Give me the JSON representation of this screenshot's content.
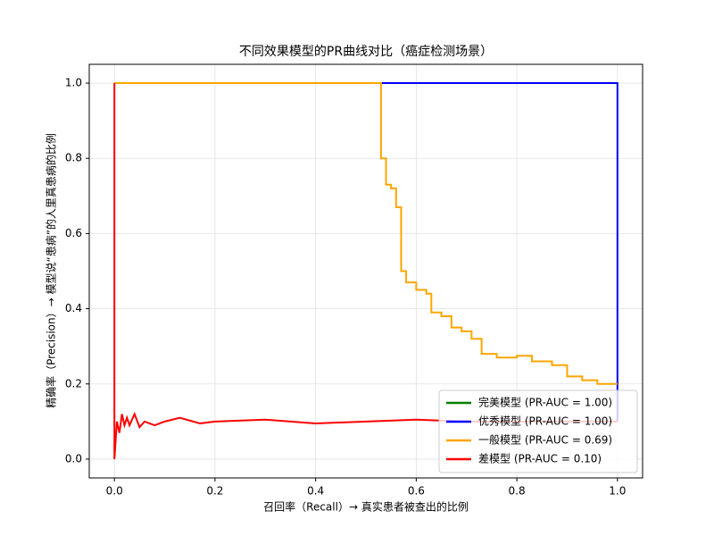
{
  "chart_data": {
    "type": "line",
    "title": "不同效果模型的PR曲线对比（癌症检测场景）",
    "x_label": "召回率（Recall）→ 真实患者被查出的比例",
    "y_label": "精确率（Precision）→ 模型说“患病”的人里真患病的比例",
    "xlim": [
      -0.05,
      1.05
    ],
    "ylim": [
      -0.05,
      1.05
    ],
    "xticks": [
      {
        "value": 0,
        "label": "0.0"
      },
      0.2,
      0.4,
      0.6,
      0.8,
      {
        "value": 1,
        "label": "1.0"
      }
    ],
    "yticks": [
      {
        "value": 0,
        "label": "0.0"
      },
      0.2,
      0.4,
      0.6,
      0.8,
      {
        "value": 1,
        "label": "1.0"
      }
    ],
    "grid": true,
    "legend": "lower right",
    "series": [
      {
        "name": "完美模型 (PR-AUC = 1.00)",
        "color": "#008000",
        "x": [
          0,
          1
        ],
        "values": [
          1,
          1
        ]
      },
      {
        "name": "优秀模型 (PR-AUC = 1.00)",
        "color": "#0000ff",
        "x": [
          0,
          1,
          1
        ],
        "values": [
          1,
          1,
          0.1
        ]
      },
      {
        "name": "一般模型 (PR-AUC = 0.69)",
        "color": "#ffa500",
        "x": [
          0,
          0.53,
          0.53,
          0.54,
          0.54,
          0.55,
          0.55,
          0.56,
          0.56,
          0.57,
          0.57,
          0.58,
          0.58,
          0.6,
          0.6,
          0.62,
          0.62,
          0.63,
          0.63,
          0.65,
          0.65,
          0.67,
          0.67,
          0.69,
          0.69,
          0.71,
          0.71,
          0.73,
          0.73,
          0.76,
          0.76,
          0.8,
          0.8,
          0.83,
          0.83,
          0.87,
          0.87,
          0.9,
          0.9,
          0.93,
          0.93,
          0.96,
          0.96,
          1.0
        ],
        "values": [
          1,
          1,
          0.8,
          0.8,
          0.73,
          0.73,
          0.72,
          0.72,
          0.67,
          0.67,
          0.5,
          0.5,
          0.47,
          0.47,
          0.45,
          0.45,
          0.44,
          0.44,
          0.39,
          0.39,
          0.38,
          0.38,
          0.35,
          0.35,
          0.34,
          0.34,
          0.32,
          0.32,
          0.28,
          0.28,
          0.27,
          0.27,
          0.275,
          0.275,
          0.26,
          0.26,
          0.25,
          0.25,
          0.22,
          0.22,
          0.21,
          0.21,
          0.2,
          0.2
        ]
      },
      {
        "name": "差模型 (PR-AUC = 0.10)",
        "color": "#ff0000",
        "x": [
          0,
          0,
          0.005,
          0.01,
          0.015,
          0.02,
          0.025,
          0.03,
          0.04,
          0.05,
          0.06,
          0.08,
          0.1,
          0.13,
          0.17,
          0.2,
          0.3,
          0.4,
          0.5,
          0.6,
          0.7,
          0.8,
          0.9,
          1.0
        ],
        "values": [
          1,
          0,
          0.1,
          0.07,
          0.12,
          0.09,
          0.11,
          0.09,
          0.12,
          0.085,
          0.1,
          0.09,
          0.1,
          0.11,
          0.095,
          0.1,
          0.105,
          0.095,
          0.1,
          0.105,
          0.1,
          0.1,
          0.1,
          0.1
        ]
      }
    ]
  }
}
